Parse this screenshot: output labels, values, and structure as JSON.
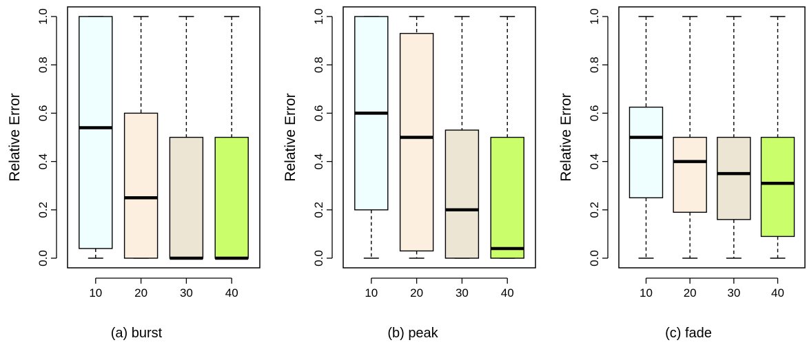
{
  "chart_data": [
    {
      "type": "boxplot",
      "caption": "(a) burst",
      "ylabel": "Relative Error",
      "xlabel": "",
      "ylim": [
        0.0,
        1.0
      ],
      "yticks": [
        "0.0",
        "0.2",
        "0.4",
        "0.6",
        "0.8",
        "1.0"
      ],
      "categories": [
        "10",
        "20",
        "30",
        "40"
      ],
      "colors": [
        "#effeff",
        "#fdefdf",
        "#ede5d3",
        "#cafe6a"
      ],
      "boxes": [
        {
          "min": 0.0,
          "q1": 0.04,
          "median": 0.54,
          "q3": 1.0,
          "max": 1.0
        },
        {
          "min": 0.0,
          "q1": 0.0,
          "median": 0.25,
          "q3": 0.6,
          "max": 1.0
        },
        {
          "min": 0.0,
          "q1": 0.0,
          "median": 0.0,
          "q3": 0.5,
          "max": 1.0
        },
        {
          "min": 0.0,
          "q1": 0.0,
          "median": 0.0,
          "q3": 0.5,
          "max": 1.0
        }
      ]
    },
    {
      "type": "boxplot",
      "caption": "(b) peak",
      "ylabel": "Relative Error",
      "xlabel": "",
      "ylim": [
        0.0,
        1.0
      ],
      "yticks": [
        "0.0",
        "0.2",
        "0.4",
        "0.6",
        "0.8",
        "1.0"
      ],
      "categories": [
        "10",
        "20",
        "30",
        "40"
      ],
      "colors": [
        "#effeff",
        "#fdefdf",
        "#ede5d3",
        "#cafe6a"
      ],
      "boxes": [
        {
          "min": 0.0,
          "q1": 0.2,
          "median": 0.6,
          "q3": 1.0,
          "max": 1.0
        },
        {
          "min": 0.0,
          "q1": 0.03,
          "median": 0.5,
          "q3": 0.93,
          "max": 1.0
        },
        {
          "min": 0.0,
          "q1": 0.0,
          "median": 0.2,
          "q3": 0.53,
          "max": 1.0
        },
        {
          "min": 0.0,
          "q1": 0.0,
          "median": 0.04,
          "q3": 0.5,
          "max": 1.0
        }
      ]
    },
    {
      "type": "boxplot",
      "caption": "(c) fade",
      "ylabel": "Relative Error",
      "xlabel": "",
      "ylim": [
        0.0,
        1.0
      ],
      "yticks": [
        "0.0",
        "0.2",
        "0.4",
        "0.6",
        "0.8",
        "1.0"
      ],
      "categories": [
        "10",
        "20",
        "30",
        "40"
      ],
      "colors": [
        "#effeff",
        "#fdefdf",
        "#ede5d3",
        "#cafe6a"
      ],
      "boxes": [
        {
          "min": 0.0,
          "q1": 0.25,
          "median": 0.5,
          "q3": 0.625,
          "max": 1.0
        },
        {
          "min": 0.0,
          "q1": 0.19,
          "median": 0.4,
          "q3": 0.5,
          "max": 1.0
        },
        {
          "min": 0.0,
          "q1": 0.16,
          "median": 0.35,
          "q3": 0.5,
          "max": 1.0
        },
        {
          "min": 0.0,
          "q1": 0.09,
          "median": 0.31,
          "q3": 0.5,
          "max": 1.0
        }
      ]
    }
  ]
}
